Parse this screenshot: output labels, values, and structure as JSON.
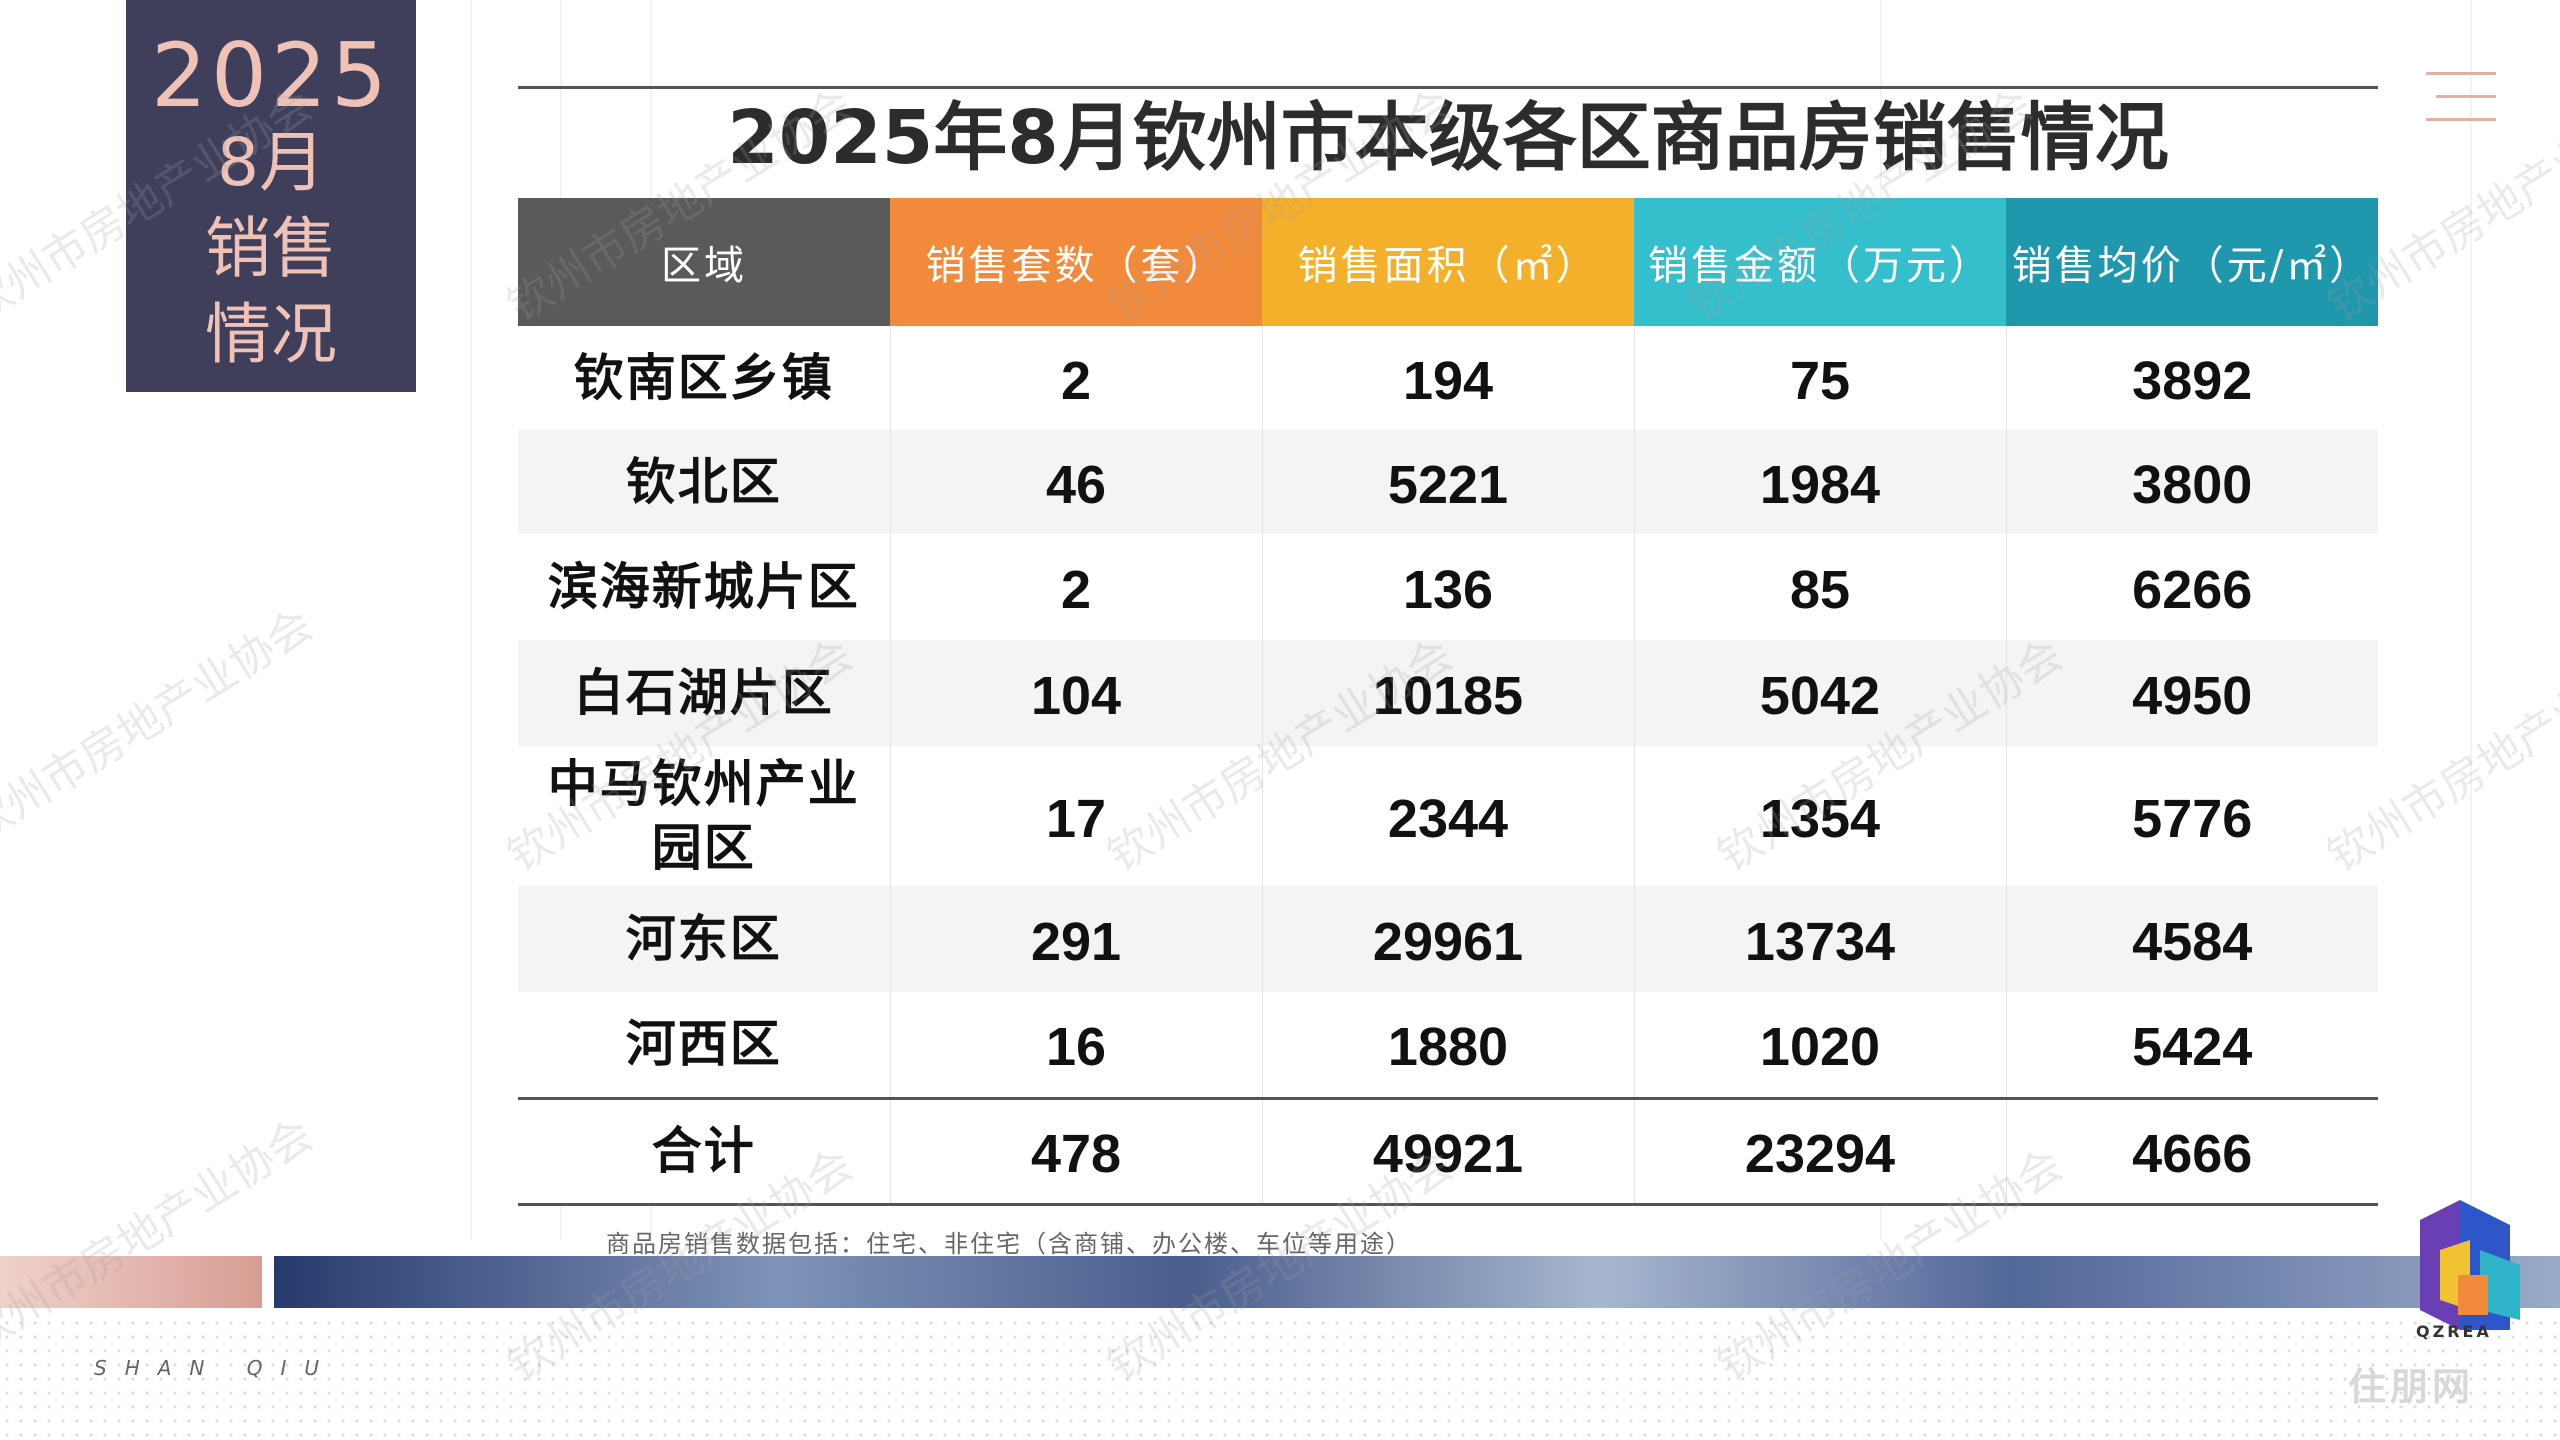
{
  "date_label": {
    "year": "2025",
    "month": "8月",
    "line1": "销售",
    "line2": "情况"
  },
  "title": "2025年8月钦州市本级各区商品房销售情况",
  "table": {
    "headers": [
      "区域",
      "销售套数（套）",
      "销售面积（㎡）",
      "销售金额（万元）",
      "销售均价（元/㎡）"
    ],
    "header_colors": [
      "#5a5a5a",
      "#f28a3b",
      "#f4b02b",
      "#35bfcc",
      "#1f97ad"
    ],
    "rows": [
      {
        "region": "钦南区乡镇",
        "units": "2",
        "area": "194",
        "amount": "75",
        "price": "3892"
      },
      {
        "region": "钦北区",
        "units": "46",
        "area": "5221",
        "amount": "1984",
        "price": "3800"
      },
      {
        "region": "滨海新城片区",
        "units": "2",
        "area": "136",
        "amount": "85",
        "price": "6266"
      },
      {
        "region": "白石湖片区",
        "units": "104",
        "area": "10185",
        "amount": "5042",
        "price": "4950"
      },
      {
        "region": "中马钦州产业园区",
        "units": "17",
        "area": "2344",
        "amount": "1354",
        "price": "5776"
      },
      {
        "region": "河东区",
        "units": "291",
        "area": "29961",
        "amount": "13734",
        "price": "4584"
      },
      {
        "region": "河西区",
        "units": "16",
        "area": "1880",
        "amount": "1020",
        "price": "5424"
      }
    ],
    "total": {
      "region": "合计",
      "units": "478",
      "area": "49921",
      "amount": "23294",
      "price": "4666"
    }
  },
  "footnote": "商品房销售数据包括：住宅、非住宅（含商铺、办公楼、车位等用途）",
  "brand_text": "SHAN QIU",
  "logo_caption": "QZREA",
  "site_watermark": "住朋网",
  "watermark_text": "钦州市房地产业协会"
}
